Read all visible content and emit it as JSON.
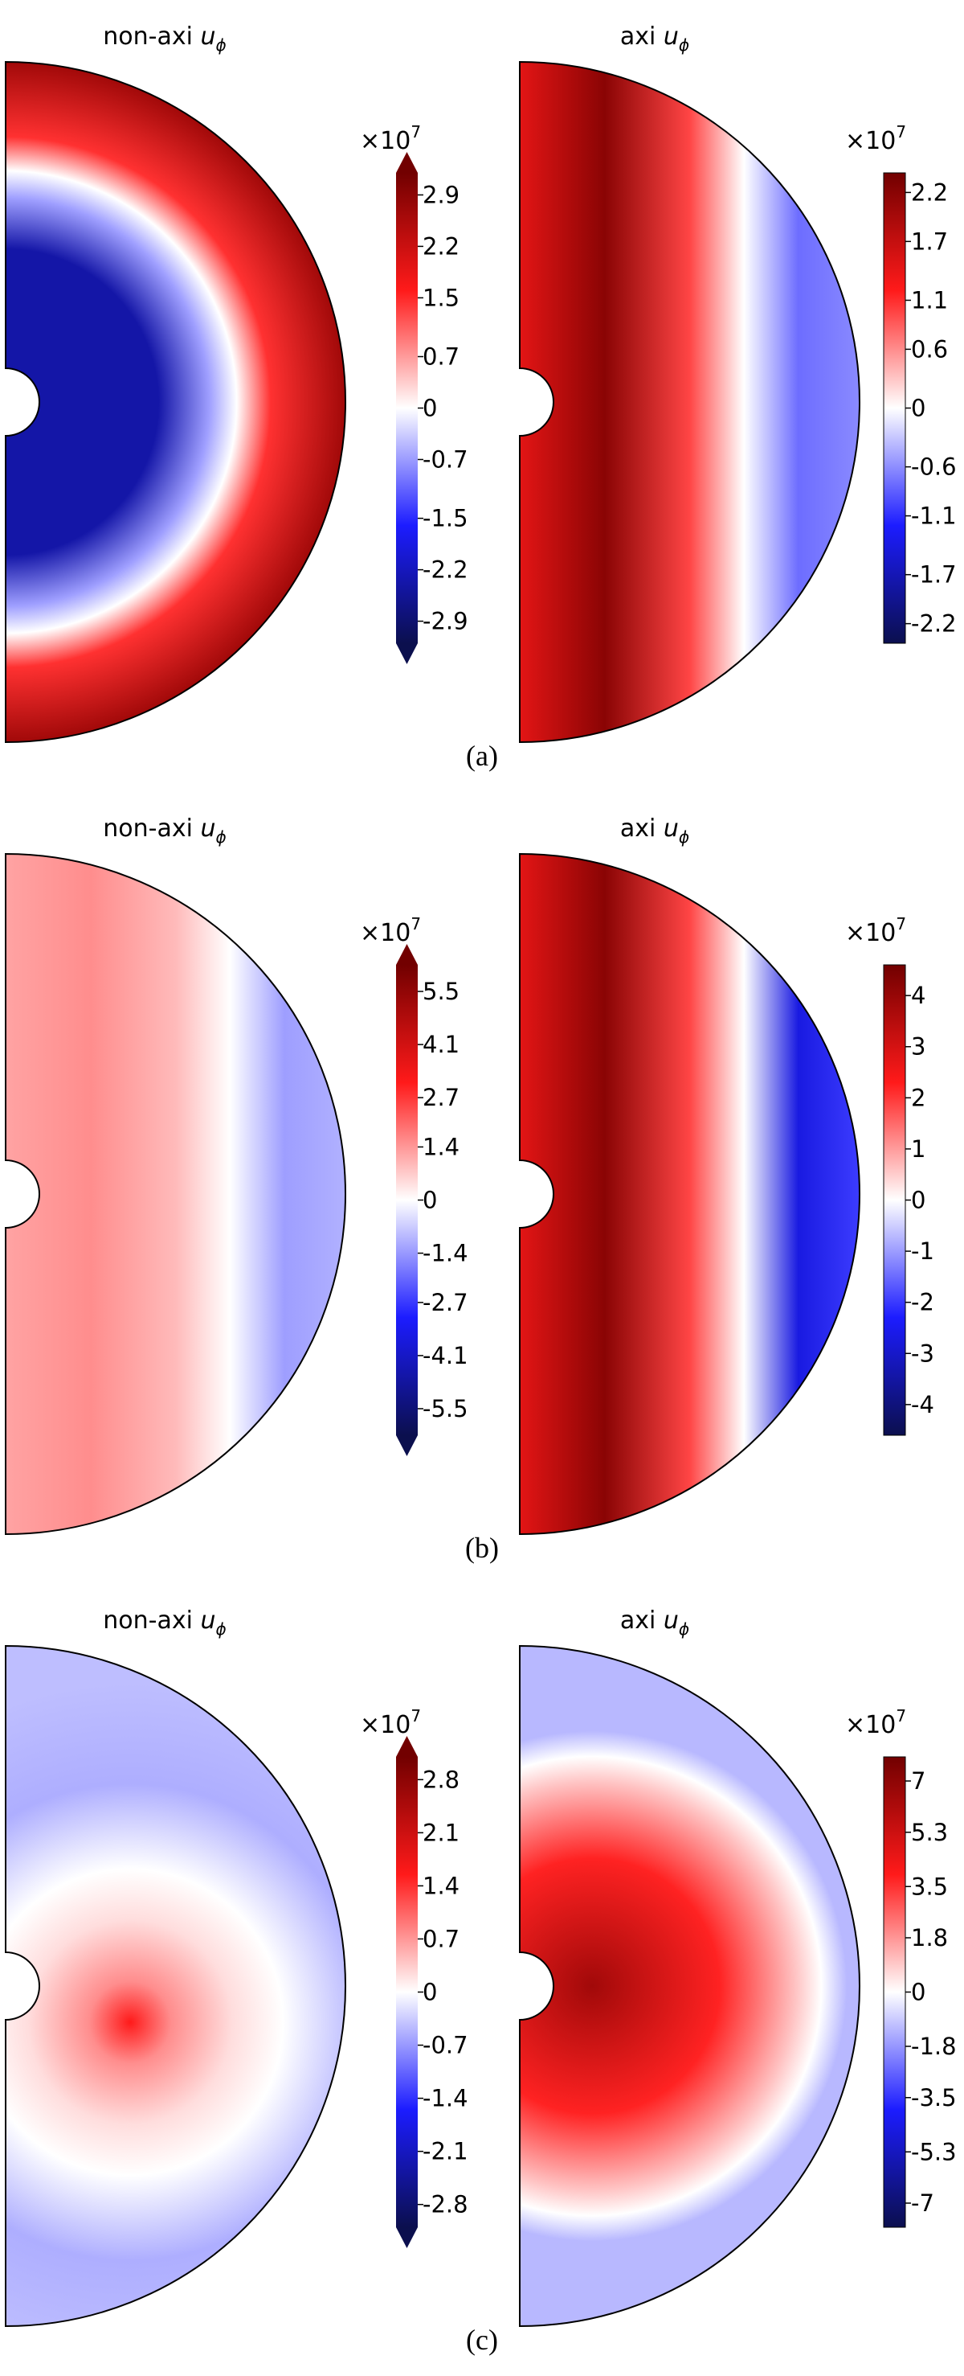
{
  "chart_data": [
    {
      "type": "heatmap",
      "panel": "(a)",
      "plots": [
        {
          "title_prefix": "non-axi ",
          "title_symbol": "u",
          "title_subscript": "ϕ",
          "colorbar_multiplier": "×10",
          "colorbar_exponent": "7",
          "colorbar_ticks": [
            "2.9",
            "2.2",
            "1.5",
            "0.7",
            "0",
            "-0.7",
            "-1.5",
            "-2.2",
            "-2.9"
          ],
          "colorbar_range": [
            -3.2,
            3.2
          ],
          "colorbar_extend": "both",
          "pattern": "ring",
          "features": [
            {
              "kind": "core",
              "sign": "negative",
              "amplitude": 0.85,
              "radius_fraction": 0.68
            },
            {
              "kind": "shell",
              "sign": "positive",
              "amplitude": 0.9
            }
          ]
        },
        {
          "title_prefix": "axi ",
          "title_symbol": "u",
          "title_subscript": "ϕ",
          "colorbar_multiplier": "×10",
          "colorbar_exponent": "7",
          "colorbar_ticks": [
            "2.2",
            "1.7",
            "1.1",
            "0.6",
            "0",
            "-0.6",
            "-1.1",
            "-1.7",
            "-2.2"
          ],
          "colorbar_range": [
            -2.4,
            2.4
          ],
          "colorbar_extend": "neither",
          "pattern": "columns",
          "features": [
            {
              "kind": "inner-column",
              "sign": "positive",
              "amplitude": 0.95
            },
            {
              "kind": "outer-column",
              "sign": "negative",
              "amplitude": 0.45
            }
          ]
        }
      ]
    },
    {
      "type": "heatmap",
      "panel": "(b)",
      "plots": [
        {
          "title_prefix": "non-axi ",
          "title_symbol": "u",
          "title_subscript": "ϕ",
          "colorbar_multiplier": "×10",
          "colorbar_exponent": "7",
          "colorbar_ticks": [
            "5.5",
            "4.1",
            "2.7",
            "1.4",
            "0",
            "-1.4",
            "-2.7",
            "-4.1",
            "-5.5"
          ],
          "colorbar_range": [
            -6.2,
            6.2
          ],
          "colorbar_extend": "both",
          "pattern": "columns",
          "features": [
            {
              "kind": "inner-column",
              "sign": "positive",
              "amplitude": 0.35
            },
            {
              "kind": "outer-column",
              "sign": "negative",
              "amplitude": 0.3
            }
          ]
        },
        {
          "title_prefix": "axi ",
          "title_symbol": "u",
          "title_subscript": "ϕ",
          "colorbar_multiplier": "×10",
          "colorbar_exponent": "7",
          "colorbar_ticks": [
            "4",
            "3",
            "2",
            "1",
            "0",
            "-1",
            "-2",
            "-3",
            "-4"
          ],
          "colorbar_range": [
            -4.6,
            4.6
          ],
          "colorbar_extend": "neither",
          "pattern": "columns",
          "features": [
            {
              "kind": "inner-column",
              "sign": "positive",
              "amplitude": 0.95
            },
            {
              "kind": "outer-column",
              "sign": "negative",
              "amplitude": 0.75
            }
          ]
        }
      ]
    },
    {
      "type": "heatmap",
      "panel": "(c)",
      "plots": [
        {
          "title_prefix": "non-axi ",
          "title_symbol": "u",
          "title_subscript": "ϕ",
          "colorbar_multiplier": "×10",
          "colorbar_exponent": "7",
          "colorbar_ticks": [
            "2.8",
            "2.1",
            "1.4",
            "0.7",
            "0",
            "-0.7",
            "-1.4",
            "-2.1",
            "-2.8"
          ],
          "colorbar_range": [
            -3.1,
            3.1
          ],
          "colorbar_extend": "both",
          "pattern": "mixed",
          "features": [
            {
              "kind": "patch",
              "sign": "positive",
              "amplitude": 0.7
            },
            {
              "kind": "background",
              "sign": "negative",
              "amplitude": 0.25
            }
          ]
        },
        {
          "title_prefix": "axi ",
          "title_symbol": "u",
          "title_subscript": "ϕ",
          "colorbar_multiplier": "×10",
          "colorbar_exponent": "7",
          "colorbar_ticks": [
            "7",
            "5.3",
            "3.5",
            "1.8",
            "0",
            "-1.8",
            "-3.5",
            "-5.3",
            "-7"
          ],
          "colorbar_range": [
            -7.8,
            7.8
          ],
          "colorbar_extend": "neither",
          "pattern": "blob",
          "features": [
            {
              "kind": "central-blob",
              "sign": "positive",
              "amplitude": 0.9
            },
            {
              "kind": "background",
              "sign": "negative",
              "amplitude": 0.22
            }
          ]
        }
      ]
    }
  ],
  "colormap": {
    "neg_end": "#0b0f4e",
    "neg_mid": "#1c1cff",
    "zero": "#ffffff",
    "pos_mid": "#ff1a1a",
    "pos_end": "#720000"
  }
}
